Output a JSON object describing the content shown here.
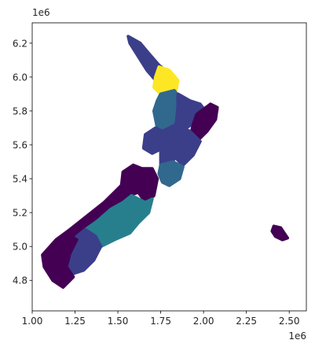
{
  "chart_data": {
    "type": "choropleth-map",
    "title": "",
    "xlabel": "",
    "ylabel": "",
    "x_offset_label": "1e6",
    "y_offset_label": "1e6",
    "xlim": [
      1.0,
      2.6
    ],
    "ylim": [
      4.62,
      6.32
    ],
    "x_ticks": [
      1.0,
      1.25,
      1.5,
      1.75,
      2.0,
      2.25,
      2.5
    ],
    "x_tick_labels": [
      "1.00",
      "1.25",
      "1.50",
      "1.75",
      "2.00",
      "2.25",
      "2.50"
    ],
    "y_ticks": [
      4.8,
      5.0,
      5.2,
      5.4,
      5.6,
      5.8,
      6.0,
      6.2
    ],
    "y_tick_labels": [
      "4.8",
      "5.0",
      "5.2",
      "5.4",
      "5.6",
      "5.8",
      "6.0",
      "6.2"
    ],
    "grid": false,
    "legend": "none",
    "colormap": "viridis",
    "colors": {
      "purple": "#440154",
      "indigo": "#3b3f8a",
      "blue": "#31688e",
      "teal": "#277f8e",
      "yellow": "#fde725"
    },
    "regions": [
      {
        "id": "northland",
        "color_level": "indigo",
        "poly": [
          [
            1.56,
            6.24
          ],
          [
            1.63,
            6.2
          ],
          [
            1.68,
            6.14
          ],
          [
            1.74,
            6.07
          ],
          [
            1.8,
            6.02
          ],
          [
            1.78,
            5.98
          ],
          [
            1.73,
            5.97
          ],
          [
            1.67,
            6.04
          ],
          [
            1.62,
            6.12
          ],
          [
            1.57,
            6.2
          ]
        ]
      },
      {
        "id": "auckland",
        "color_level": "yellow",
        "poly": [
          [
            1.74,
            6.06
          ],
          [
            1.8,
            6.04
          ],
          [
            1.85,
            5.98
          ],
          [
            1.84,
            5.92
          ],
          [
            1.8,
            5.89
          ],
          [
            1.75,
            5.9
          ],
          [
            1.71,
            5.94
          ],
          [
            1.72,
            6.0
          ]
        ]
      },
      {
        "id": "waikato",
        "color_level": "blue",
        "poly": [
          [
            1.75,
            5.9
          ],
          [
            1.83,
            5.92
          ],
          [
            1.87,
            5.86
          ],
          [
            1.85,
            5.76
          ],
          [
            1.82,
            5.68
          ],
          [
            1.77,
            5.65
          ],
          [
            1.73,
            5.7
          ],
          [
            1.71,
            5.8
          ],
          [
            1.73,
            5.86
          ]
        ]
      },
      {
        "id": "bay-of-plenty",
        "color_level": "indigo",
        "poly": [
          [
            1.85,
            5.9
          ],
          [
            1.92,
            5.86
          ],
          [
            1.98,
            5.84
          ],
          [
            2.01,
            5.8
          ],
          [
            1.96,
            5.74
          ],
          [
            1.9,
            5.7
          ],
          [
            1.84,
            5.72
          ],
          [
            1.85,
            5.82
          ]
        ]
      },
      {
        "id": "gisborne",
        "color_level": "purple",
        "poly": [
          [
            1.96,
            5.78
          ],
          [
            2.04,
            5.84
          ],
          [
            2.08,
            5.82
          ],
          [
            2.07,
            5.75
          ],
          [
            2.02,
            5.68
          ],
          [
            1.96,
            5.62
          ],
          [
            1.92,
            5.64
          ],
          [
            1.94,
            5.72
          ]
        ]
      },
      {
        "id": "taranaki",
        "color_level": "indigo",
        "poly": [
          [
            1.66,
            5.66
          ],
          [
            1.72,
            5.7
          ],
          [
            1.76,
            5.68
          ],
          [
            1.76,
            5.58
          ],
          [
            1.7,
            5.55
          ],
          [
            1.65,
            5.58
          ]
        ]
      },
      {
        "id": "manawatu-wanganui",
        "color_level": "indigo",
        "poly": [
          [
            1.76,
            5.68
          ],
          [
            1.84,
            5.72
          ],
          [
            1.86,
            5.66
          ],
          [
            1.84,
            5.54
          ],
          [
            1.8,
            5.46
          ],
          [
            1.75,
            5.48
          ],
          [
            1.75,
            5.6
          ]
        ]
      },
      {
        "id": "hawkes-bay",
        "color_level": "indigo",
        "poly": [
          [
            1.84,
            5.72
          ],
          [
            1.92,
            5.68
          ],
          [
            1.98,
            5.62
          ],
          [
            1.94,
            5.54
          ],
          [
            1.88,
            5.48
          ],
          [
            1.84,
            5.52
          ],
          [
            1.86,
            5.64
          ]
        ]
      },
      {
        "id": "wellington",
        "color_level": "blue",
        "poly": [
          [
            1.75,
            5.48
          ],
          [
            1.82,
            5.5
          ],
          [
            1.88,
            5.47
          ],
          [
            1.86,
            5.4
          ],
          [
            1.8,
            5.36
          ],
          [
            1.76,
            5.38
          ],
          [
            1.74,
            5.43
          ]
        ]
      },
      {
        "id": "tasman-nelson",
        "color_level": "purple",
        "poly": [
          [
            1.53,
            5.44
          ],
          [
            1.59,
            5.48
          ],
          [
            1.64,
            5.46
          ],
          [
            1.66,
            5.4
          ],
          [
            1.62,
            5.32
          ],
          [
            1.56,
            5.3
          ],
          [
            1.52,
            5.35
          ]
        ]
      },
      {
        "id": "marlborough",
        "color_level": "purple",
        "poly": [
          [
            1.64,
            5.46
          ],
          [
            1.7,
            5.46
          ],
          [
            1.73,
            5.4
          ],
          [
            1.71,
            5.3
          ],
          [
            1.66,
            5.26
          ],
          [
            1.62,
            5.32
          ],
          [
            1.65,
            5.4
          ]
        ]
      },
      {
        "id": "west-coast",
        "color_level": "purple",
        "poly": [
          [
            1.52,
            5.36
          ],
          [
            1.58,
            5.3
          ],
          [
            1.54,
            5.24
          ],
          [
            1.44,
            5.18
          ],
          [
            1.34,
            5.12
          ],
          [
            1.24,
            5.06
          ],
          [
            1.17,
            5.0
          ],
          [
            1.14,
            5.04
          ],
          [
            1.22,
            5.1
          ],
          [
            1.32,
            5.18
          ],
          [
            1.42,
            5.26
          ],
          [
            1.48,
            5.32
          ]
        ]
      },
      {
        "id": "canterbury",
        "color_level": "teal",
        "poly": [
          [
            1.58,
            5.3
          ],
          [
            1.66,
            5.26
          ],
          [
            1.7,
            5.28
          ],
          [
            1.68,
            5.2
          ],
          [
            1.62,
            5.14
          ],
          [
            1.57,
            5.08
          ],
          [
            1.48,
            5.04
          ],
          [
            1.4,
            5.0
          ],
          [
            1.34,
            5.04
          ],
          [
            1.31,
            5.1
          ],
          [
            1.38,
            5.15
          ],
          [
            1.46,
            5.22
          ],
          [
            1.53,
            5.26
          ]
        ]
      },
      {
        "id": "otago",
        "color_level": "indigo",
        "poly": [
          [
            1.31,
            5.1
          ],
          [
            1.37,
            5.06
          ],
          [
            1.4,
            5.0
          ],
          [
            1.36,
            4.92
          ],
          [
            1.3,
            4.86
          ],
          [
            1.24,
            4.84
          ],
          [
            1.2,
            4.9
          ],
          [
            1.22,
            4.98
          ],
          [
            1.26,
            5.06
          ]
        ]
      },
      {
        "id": "southland",
        "color_level": "purple",
        "poly": [
          [
            1.14,
            5.04
          ],
          [
            1.22,
            5.06
          ],
          [
            1.26,
            5.04
          ],
          [
            1.22,
            4.96
          ],
          [
            1.2,
            4.88
          ],
          [
            1.24,
            4.82
          ],
          [
            1.18,
            4.76
          ],
          [
            1.12,
            4.8
          ],
          [
            1.07,
            4.88
          ],
          [
            1.06,
            4.95
          ]
        ]
      },
      {
        "id": "chatham-islands",
        "color_level": "purple",
        "poly": [
          [
            2.41,
            5.12
          ],
          [
            2.45,
            5.11
          ],
          [
            2.47,
            5.08
          ],
          [
            2.49,
            5.05
          ],
          [
            2.46,
            5.04
          ],
          [
            2.42,
            5.06
          ],
          [
            2.4,
            5.09
          ]
        ]
      }
    ]
  }
}
